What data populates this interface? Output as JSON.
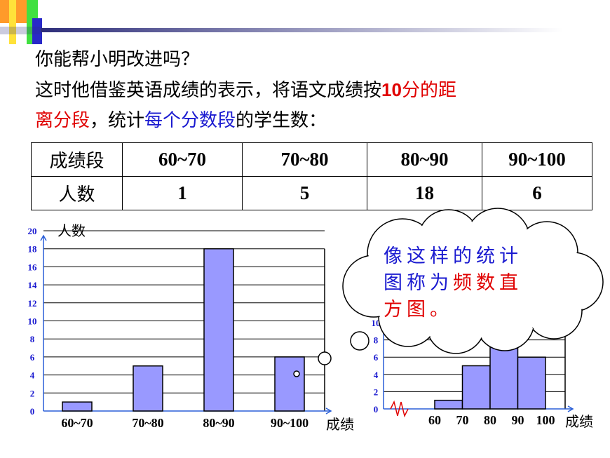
{
  "header": {
    "line1": "你能帮小明改进吗？",
    "line2_a": "这时他借鉴英语成绩的表示，将语文成绩按",
    "line2_num": "10",
    "line2_b": "分的距",
    "line3_a": "离分段",
    "line3_b": "，统计",
    "line3_c": "每个分数段",
    "line3_d": "的学生数："
  },
  "table": {
    "row1_label": "成绩段",
    "row2_label": "人数",
    "ranges": [
      "60~70",
      "70~80",
      "80~90",
      "90~100"
    ],
    "counts": [
      "1",
      "5",
      "18",
      "6"
    ]
  },
  "callout": {
    "line1": "像这样的统计",
    "line2_a": "图称为",
    "line2_b": "频数直",
    "line3": "方图。"
  },
  "colors": {
    "bar_fill": "#9999ff",
    "red": "#e00000",
    "blue": "#1a1ad0"
  },
  "chart_data": [
    {
      "type": "bar",
      "ylabel": "人数",
      "xlabel": "成绩",
      "categories": [
        "60~70",
        "70~80",
        "80~90",
        "90~100"
      ],
      "values": [
        1,
        5,
        18,
        6
      ],
      "ylim": [
        0,
        20
      ],
      "yticks": [
        0,
        2,
        4,
        6,
        8,
        10,
        12,
        14,
        16,
        18,
        20
      ],
      "grid": true
    },
    {
      "type": "bar",
      "ylabel": "人数",
      "xlabel": "成绩",
      "x_ticks": [
        "60",
        "70",
        "80",
        "90",
        "100"
      ],
      "bins": [
        [
          60,
          70
        ],
        [
          70,
          80
        ],
        [
          80,
          90
        ],
        [
          90,
          100
        ]
      ],
      "values": [
        1,
        5,
        18,
        6
      ],
      "ylim": [
        0,
        20
      ],
      "yticks": [
        0,
        2,
        4,
        6,
        8,
        10
      ],
      "grid": true
    }
  ]
}
